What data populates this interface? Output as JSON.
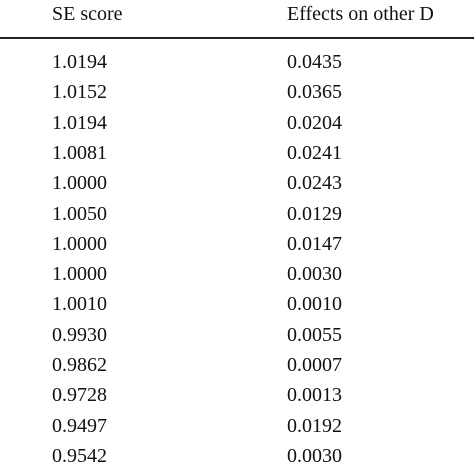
{
  "table": {
    "header": [
      "SE score",
      "Effects on other D"
    ],
    "rows": [
      [
        "1.0194",
        "0.0435"
      ],
      [
        "1.0152",
        "0.0365"
      ],
      [
        "1.0194",
        "0.0204"
      ],
      [
        "1.0081",
        "0.0241"
      ],
      [
        "1.0000",
        "0.0243"
      ],
      [
        "1.0050",
        "0.0129"
      ],
      [
        "1.0000",
        "0.0147"
      ],
      [
        "1.0000",
        "0.0030"
      ],
      [
        "1.0010",
        "0.0010"
      ],
      [
        "0.9930",
        "0.0055"
      ],
      [
        "0.9862",
        "0.0007"
      ],
      [
        "0.9728",
        "0.0013"
      ],
      [
        "0.9497",
        "0.0192"
      ],
      [
        "0.9542",
        "0.0030"
      ]
    ]
  }
}
